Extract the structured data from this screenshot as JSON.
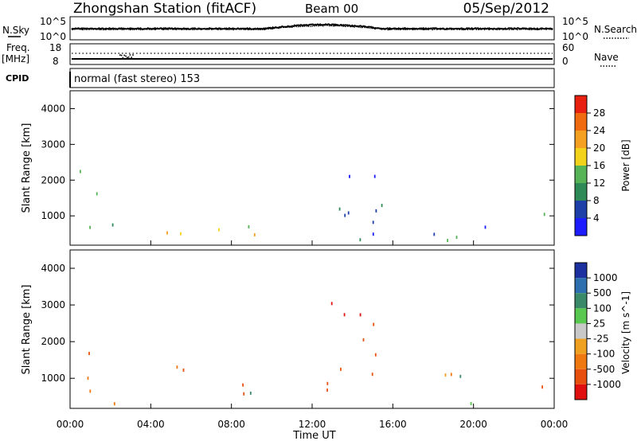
{
  "header": {
    "station": "Zhongshan Station (fitACF)",
    "beam": "Beam 00",
    "date": "05/Sep/2012"
  },
  "top_panels": {
    "nsky_label": "N.Sky",
    "nsky_ticks": [
      "10^5",
      "10^0"
    ],
    "nsearch_label": "N.Search",
    "nsearch_ticks": [
      "10^5",
      "10^0"
    ],
    "freq_label": "Freq.",
    "freq_unit": "[MHz]",
    "freq_ticks": [
      "18",
      "8"
    ],
    "nave_label": "Nave",
    "nave_ticks": [
      "60",
      "0"
    ],
    "cpid_label": "CPID",
    "mode": "normal (fast stereo) 153"
  },
  "colors": {
    "power_scale": [
      "#1c1cff",
      "#1f3fa8",
      "#2e8b57",
      "#56b456",
      "#f2d21a",
      "#f5a020",
      "#f06a10",
      "#e82010"
    ],
    "velocity_scale": [
      "#1c30a0",
      "#2e6fb0",
      "#3a8a6a",
      "#58c850",
      "#c8c8c8",
      "#f0a020",
      "#f07810",
      "#e85010",
      "#e01010"
    ]
  },
  "chart_data": [
    {
      "type": "heatmap",
      "title": "",
      "xlabel": "Time UT",
      "ylabel": "Slant Range [km]",
      "x_ticks": [
        "00:00",
        "04:00",
        "08:00",
        "12:00",
        "16:00",
        "20:00",
        "00:00"
      ],
      "y_ticks": [
        "1000",
        "2000",
        "3000",
        "4000"
      ],
      "ylim": [
        180,
        4500
      ],
      "xlim": [
        0,
        24
      ],
      "colorbar_label": "Power [dB]",
      "colorbar_ticks": [
        "4",
        "8",
        "12",
        "16",
        "20",
        "24",
        "28"
      ],
      "colorbar_range": [
        0,
        32
      ],
      "echo_regions": [
        {
          "t": [
            0.3,
            1.3
          ],
          "range": [
            200,
            2600
          ],
          "mean": 12
        },
        {
          "t": [
            1.5,
            2.2
          ],
          "range": [
            200,
            1000
          ],
          "mean": 14
        },
        {
          "t": [
            4.5,
            5.7
          ],
          "range": [
            300,
            2100
          ],
          "mean": 16
        },
        {
          "t": [
            5.6,
            9.3
          ],
          "range": [
            200,
            800
          ],
          "mean": 20
        },
        {
          "t": [
            8.5,
            10.7
          ],
          "range": [
            300,
            900
          ],
          "mean": 14
        },
        {
          "t": [
            12.7,
            15.5
          ],
          "range": [
            200,
            3300
          ],
          "mean": 6
        },
        {
          "t": [
            18.0,
            20.7
          ],
          "range": [
            200,
            1700
          ],
          "mean": 10
        },
        {
          "t": [
            23.0,
            24.0
          ],
          "range": [
            600,
            1600
          ],
          "mean": 8
        }
      ]
    },
    {
      "type": "heatmap",
      "title": "",
      "xlabel": "Time UT",
      "ylabel": "Slant Range [km]",
      "x_ticks": [
        "00:00",
        "04:00",
        "08:00",
        "12:00",
        "16:00",
        "20:00",
        "00:00"
      ],
      "y_ticks": [
        "1000",
        "2000",
        "3000",
        "4000"
      ],
      "ylim": [
        180,
        4500
      ],
      "xlim": [
        0,
        24
      ],
      "colorbar_label": "Velocity [m s^-1]",
      "colorbar_ticks": [
        "1000",
        "500",
        "100",
        "25",
        "-25",
        "-100",
        "-500",
        "-1000"
      ],
      "echo_regions": [
        {
          "t": [
            0.3,
            1.3
          ],
          "range": [
            200,
            2600
          ],
          "mean": -200
        },
        {
          "t": [
            1.5,
            2.2
          ],
          "range": [
            200,
            1000
          ],
          "mean": -150
        },
        {
          "t": [
            4.5,
            5.7
          ],
          "range": [
            300,
            2100
          ],
          "mean": -200
        },
        {
          "t": [
            5.6,
            9.3
          ],
          "range": [
            200,
            800
          ],
          "mean": -300
        },
        {
          "t": [
            8.5,
            10.7
          ],
          "range": [
            300,
            900
          ],
          "mean": 50
        },
        {
          "t": [
            12.7,
            15.5
          ],
          "range": [
            200,
            3300
          ],
          "mean": -700
        },
        {
          "t": [
            18.0,
            20.7
          ],
          "range": [
            200,
            1700
          ],
          "mean": 0
        },
        {
          "t": [
            23.0,
            24.0
          ],
          "range": [
            600,
            1600
          ],
          "mean": -200
        }
      ]
    }
  ]
}
